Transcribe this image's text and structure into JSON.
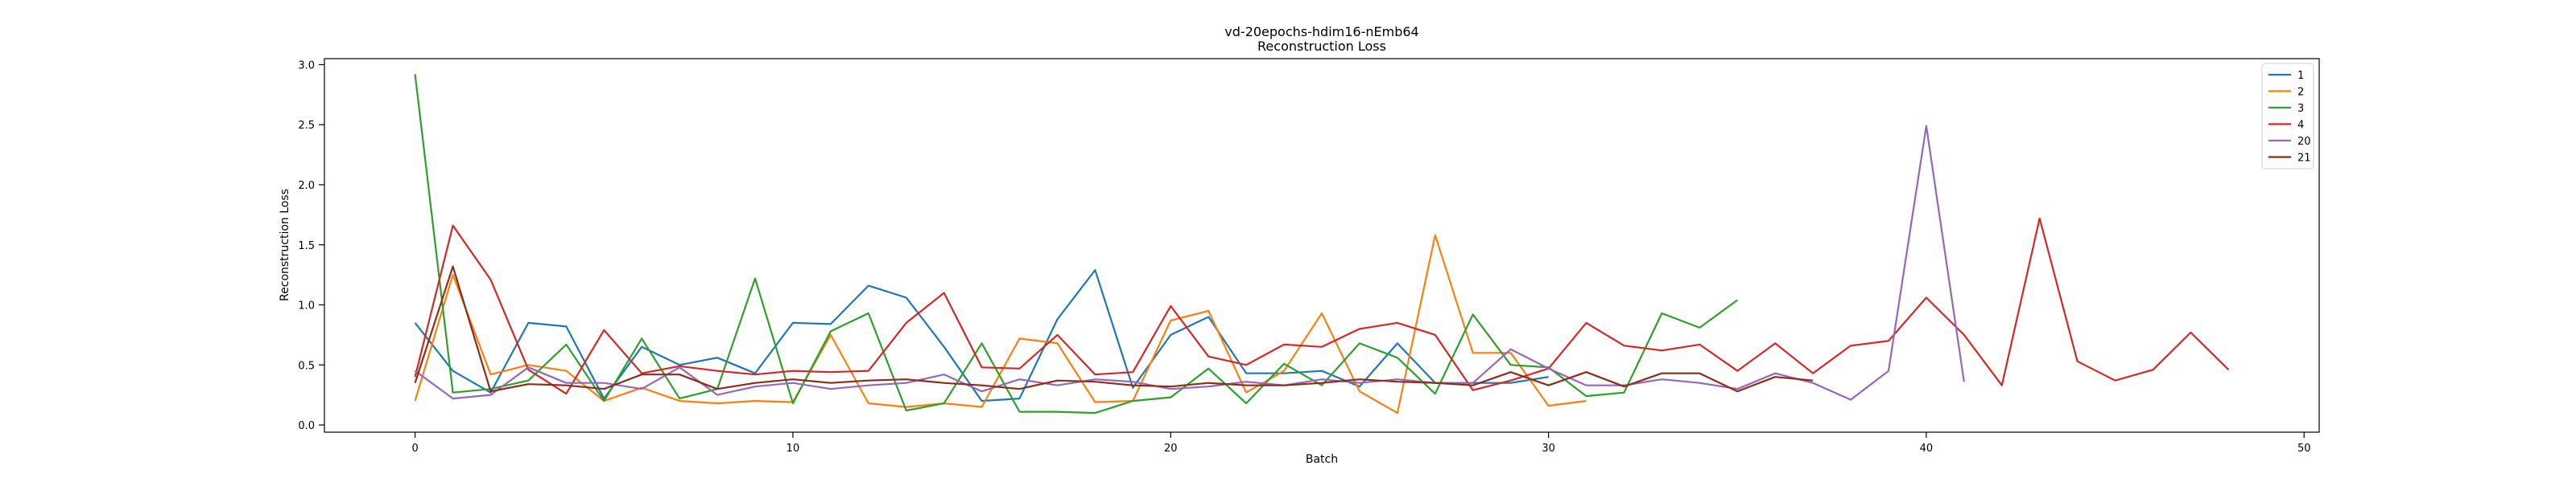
{
  "chart_data": {
    "type": "line",
    "title": "vd-20epochs-hdim16-nEmb64",
    "subtitle": "Reconstruction Loss",
    "xlabel": "Batch",
    "ylabel": "Reconstruction Loss",
    "xlim": [
      -2.4,
      50.4
    ],
    "ylim": [
      -0.06,
      3.05
    ],
    "xticks": [
      0,
      10,
      20,
      30,
      40,
      50
    ],
    "yticks": [
      0.0,
      0.5,
      1.0,
      1.5,
      2.0,
      2.5,
      3.0
    ],
    "xtick_labels": [
      "0",
      "10",
      "20",
      "30",
      "40",
      "50"
    ],
    "ytick_labels": [
      "0.0",
      "0.5",
      "1.0",
      "1.5",
      "2.0",
      "2.5",
      "3.0"
    ],
    "grid": false,
    "legend_position": "top-right",
    "series": [
      {
        "name": "1",
        "color": "#1f77b4",
        "values": [
          0.85,
          0.45,
          0.27,
          0.85,
          0.82,
          0.22,
          0.65,
          0.5,
          0.56,
          0.43,
          0.85,
          0.84,
          1.16,
          1.06,
          0.65,
          0.2,
          0.22,
          0.88,
          1.29,
          0.31,
          0.75,
          0.9,
          0.43,
          0.43,
          0.45,
          0.32,
          0.68,
          0.35,
          0.35,
          0.35,
          0.4
        ]
      },
      {
        "name": "2",
        "color": "#ff7f0e",
        "values": [
          0.2,
          1.25,
          0.42,
          0.5,
          0.45,
          0.2,
          0.31,
          0.2,
          0.18,
          0.2,
          0.19,
          0.75,
          0.18,
          0.15,
          0.18,
          0.15,
          0.72,
          0.68,
          0.19,
          0.2,
          0.87,
          0.95,
          0.27,
          0.45,
          0.93,
          0.28,
          0.1,
          1.58,
          0.6,
          0.6,
          0.16,
          0.2
        ]
      },
      {
        "name": "3",
        "color": "#2ca02c",
        "values": [
          2.92,
          0.27,
          0.3,
          0.37,
          0.67,
          0.2,
          0.72,
          0.22,
          0.3,
          1.22,
          0.18,
          0.78,
          0.93,
          0.12,
          0.18,
          0.68,
          0.11,
          0.11,
          0.1,
          0.2,
          0.23,
          0.47,
          0.18,
          0.51,
          0.33,
          0.68,
          0.56,
          0.26,
          0.92,
          0.5,
          0.48,
          0.24,
          0.27,
          0.93,
          0.81,
          1.04
        ]
      },
      {
        "name": "4",
        "color": "#d62728",
        "values": [
          0.4,
          1.66,
          1.21,
          0.46,
          0.26,
          0.79,
          0.43,
          0.49,
          0.45,
          0.42,
          0.45,
          0.44,
          0.45,
          0.85,
          1.1,
          0.48,
          0.47,
          0.75,
          0.42,
          0.44,
          0.99,
          0.57,
          0.5,
          0.67,
          0.65,
          0.8,
          0.85,
          0.75,
          0.29,
          0.37,
          0.47,
          0.85,
          0.66,
          0.62,
          0.67,
          0.45,
          0.68,
          0.43,
          0.66,
          0.7,
          1.06,
          0.75,
          0.33,
          1.72,
          0.53,
          0.37,
          0.46,
          0.77,
          0.46
        ]
      },
      {
        "name": "20",
        "color": "#9467bd",
        "values": [
          0.45,
          0.22,
          0.25,
          0.48,
          0.35,
          0.35,
          0.3,
          0.48,
          0.25,
          0.32,
          0.35,
          0.3,
          0.33,
          0.35,
          0.42,
          0.28,
          0.38,
          0.33,
          0.38,
          0.36,
          0.3,
          0.32,
          0.36,
          0.33,
          0.38,
          0.35,
          0.38,
          0.35,
          0.35,
          0.63,
          0.47,
          0.33,
          0.33,
          0.38,
          0.35,
          0.3,
          0.43,
          0.35,
          0.21,
          0.45,
          2.49,
          0.36
        ]
      },
      {
        "name": "21",
        "color": "#8c2d19",
        "values": [
          0.35,
          1.32,
          0.28,
          0.34,
          0.33,
          0.3,
          0.42,
          0.42,
          0.3,
          0.35,
          0.38,
          0.35,
          0.37,
          0.38,
          0.35,
          0.33,
          0.3,
          0.37,
          0.36,
          0.33,
          0.32,
          0.35,
          0.33,
          0.33,
          0.35,
          0.38,
          0.36,
          0.35,
          0.33,
          0.44,
          0.33,
          0.44,
          0.32,
          0.43,
          0.43,
          0.28,
          0.4,
          0.37
        ]
      }
    ]
  }
}
